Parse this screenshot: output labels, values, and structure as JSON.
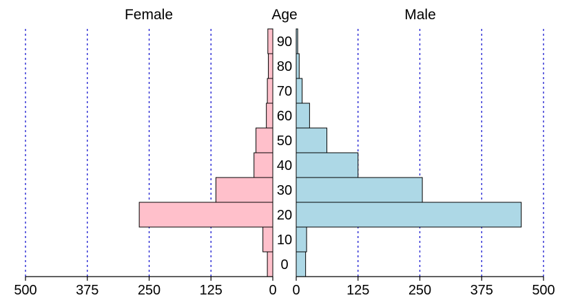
{
  "chart_data": {
    "type": "bar",
    "orientation": "horizontal",
    "layout": "population-pyramid",
    "left_header": "Female",
    "center_header": "Age",
    "right_header": "Male",
    "categories": [
      "0",
      "10",
      "20",
      "30",
      "40",
      "50",
      "60",
      "70",
      "80",
      "90"
    ],
    "series": [
      {
        "name": "Female",
        "side": "left",
        "color": "#ffc0cb",
        "values": [
          11,
          20,
          270,
          115,
          38,
          34,
          13,
          11,
          9,
          10
        ]
      },
      {
        "name": "Male",
        "side": "right",
        "color": "#add8e6",
        "values": [
          19,
          21,
          455,
          255,
          125,
          62,
          27,
          12,
          6,
          3
        ]
      }
    ],
    "x_ticks": [
      0,
      125,
      250,
      375,
      500
    ],
    "x_tick_labels": [
      "0",
      "125",
      "250",
      "375",
      "500"
    ],
    "xlim": [
      0,
      500
    ],
    "grid": {
      "vertical": true,
      "style": "dotted",
      "color": "#0000cc"
    },
    "bar_edge_color": "#000000",
    "axis_color": "#000000"
  }
}
